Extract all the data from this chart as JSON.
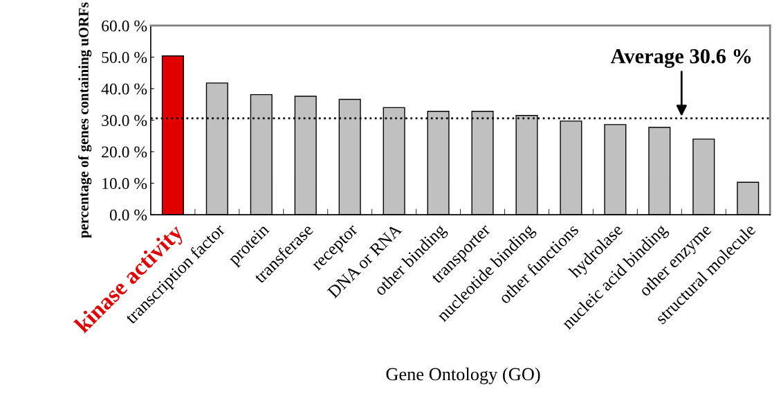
{
  "chart_data": {
    "type": "bar",
    "xlabel": "Gene Ontology (GO)",
    "ylabel": "percentage of genes containing uORFs",
    "categories": [
      "kinase activity",
      "transcription factor",
      "protein",
      "transferase",
      "receptor",
      "DNA or RNA",
      "other binding",
      "transporter",
      "nucleotide binding",
      "other functions",
      "hydrolase",
      "nucleic acid binding",
      "other enzyme",
      "structural molecule"
    ],
    "values": [
      50.4,
      41.8,
      38.1,
      37.6,
      36.6,
      34.0,
      32.8,
      32.8,
      31.5,
      29.7,
      28.6,
      27.7,
      24.0,
      10.3
    ],
    "colors": [
      "#e00000",
      "#c0c0c0",
      "#c0c0c0",
      "#c0c0c0",
      "#c0c0c0",
      "#c0c0c0",
      "#c0c0c0",
      "#c0c0c0",
      "#c0c0c0",
      "#c0c0c0",
      "#c0c0c0",
      "#c0c0c0",
      "#c0c0c0",
      "#c0c0c0"
    ],
    "ylim": [
      0,
      60
    ],
    "yticks": [
      {
        "value": 0,
        "label": "0.0 %"
      },
      {
        "value": 10,
        "label": "10.0 %"
      },
      {
        "value": 20,
        "label": "20.0 %"
      },
      {
        "value": 30,
        "label": "30.0 %"
      },
      {
        "value": 40,
        "label": "40.0 %"
      },
      {
        "value": 50,
        "label": "50.0 %"
      },
      {
        "value": 60,
        "label": "60.0 %"
      }
    ],
    "ref_lines": [
      {
        "axis": "y",
        "value": 30.6,
        "label": "Average 30.6 %",
        "color": "#000000",
        "line_style": "dotted"
      }
    ],
    "grid": false,
    "legend": false
  }
}
